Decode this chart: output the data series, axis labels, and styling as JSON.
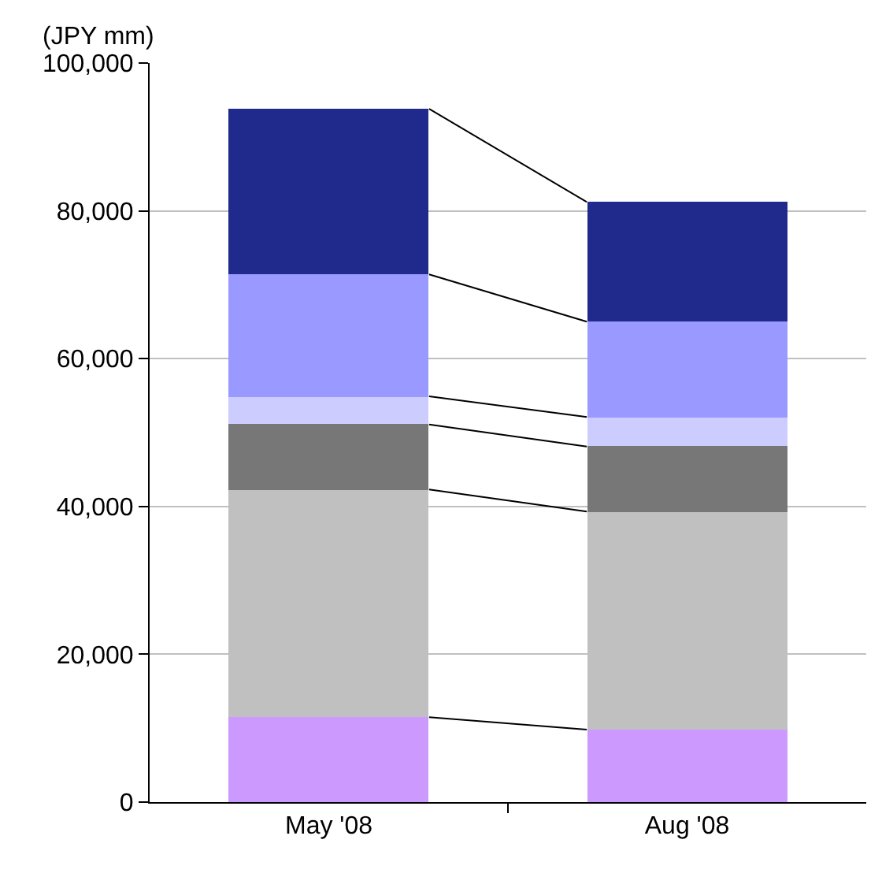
{
  "chart_data": {
    "type": "bar",
    "stacked": true,
    "ylabel": "(JPY mm)",
    "categories": [
      "May '08",
      "Aug '08"
    ],
    "series": [
      {
        "color": "#cc99ff",
        "values": [
          11500,
          9800
        ]
      },
      {
        "color": "#c0c0c0",
        "values": [
          30800,
          29500
        ]
      },
      {
        "color": "#777777",
        "values": [
          8800,
          8800
        ]
      },
      {
        "color": "#ccccff",
        "values": [
          3800,
          4000
        ]
      },
      {
        "color": "#9999ff",
        "values": [
          16500,
          12900
        ]
      },
      {
        "color": "#1f2a8c",
        "values": [
          22400,
          16200
        ]
      }
    ],
    "ylim": [
      0,
      100000
    ],
    "yticks": [
      {
        "value": 0,
        "label": "0"
      },
      {
        "value": 20000,
        "label": "20,000"
      },
      {
        "value": 40000,
        "label": "40,000"
      },
      {
        "value": 60000,
        "label": "60,000"
      },
      {
        "value": 80000,
        "label": "80,000"
      },
      {
        "value": 100000,
        "label": "100,000"
      }
    ],
    "grid": "y"
  }
}
